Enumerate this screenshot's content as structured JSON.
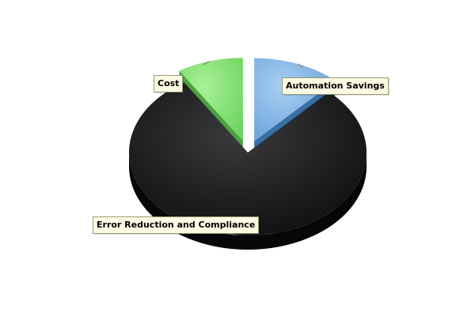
{
  "chart_data": {
    "type": "pie",
    "style": "3d-exploded",
    "title": "",
    "slices": [
      {
        "label": "Automation Savings",
        "value": 12,
        "color": "#6aa6df"
      },
      {
        "label": "Error Reduction and Compliance",
        "value": 79,
        "color": "#1c1c1e"
      },
      {
        "label": "Cost",
        "value": 9,
        "color": "#78de6a"
      }
    ],
    "labels": {
      "automation": "Automation Savings",
      "error": "Error Reduction and Compliance",
      "cost": "Cost"
    },
    "exploded_slices": [
      "Automation Savings",
      "Cost"
    ]
  }
}
